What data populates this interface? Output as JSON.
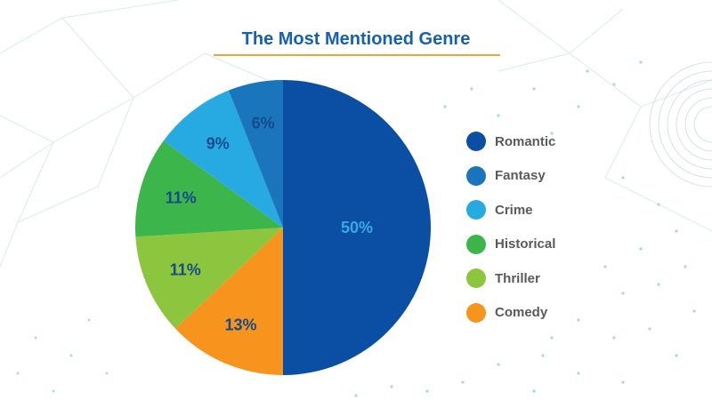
{
  "chart_data": {
    "type": "pie",
    "title": "The Most Mentioned Genre",
    "slices": [
      {
        "label": "Romantic",
        "value": 50,
        "display": "50%",
        "color": "#0a4fa3",
        "text_color": "#3aa8e6"
      },
      {
        "label": "Comedy",
        "value": 13,
        "display": "13%",
        "color": "#f7941d",
        "text_color": "#154a8c"
      },
      {
        "label": "Thriller",
        "value": 11,
        "display": "11%",
        "color": "#8cc63e",
        "text_color": "#154a8c"
      },
      {
        "label": "Historical",
        "value": 11,
        "display": "11%",
        "color": "#3cb54a",
        "text_color": "#154a8c"
      },
      {
        "label": "Crime",
        "value": 9,
        "display": "9%",
        "color": "#27aae1",
        "text_color": "#154a8c"
      },
      {
        "label": "Fantasy",
        "value": 6,
        "display": "6%",
        "color": "#1b75bc",
        "text_color": "#154a8c"
      }
    ],
    "legend": [
      "Romantic",
      "Fantasy",
      "Crime",
      "Historical",
      "Thriller",
      "Comedy"
    ],
    "legend_placement": "right",
    "accent_color": "#f0a43a"
  }
}
